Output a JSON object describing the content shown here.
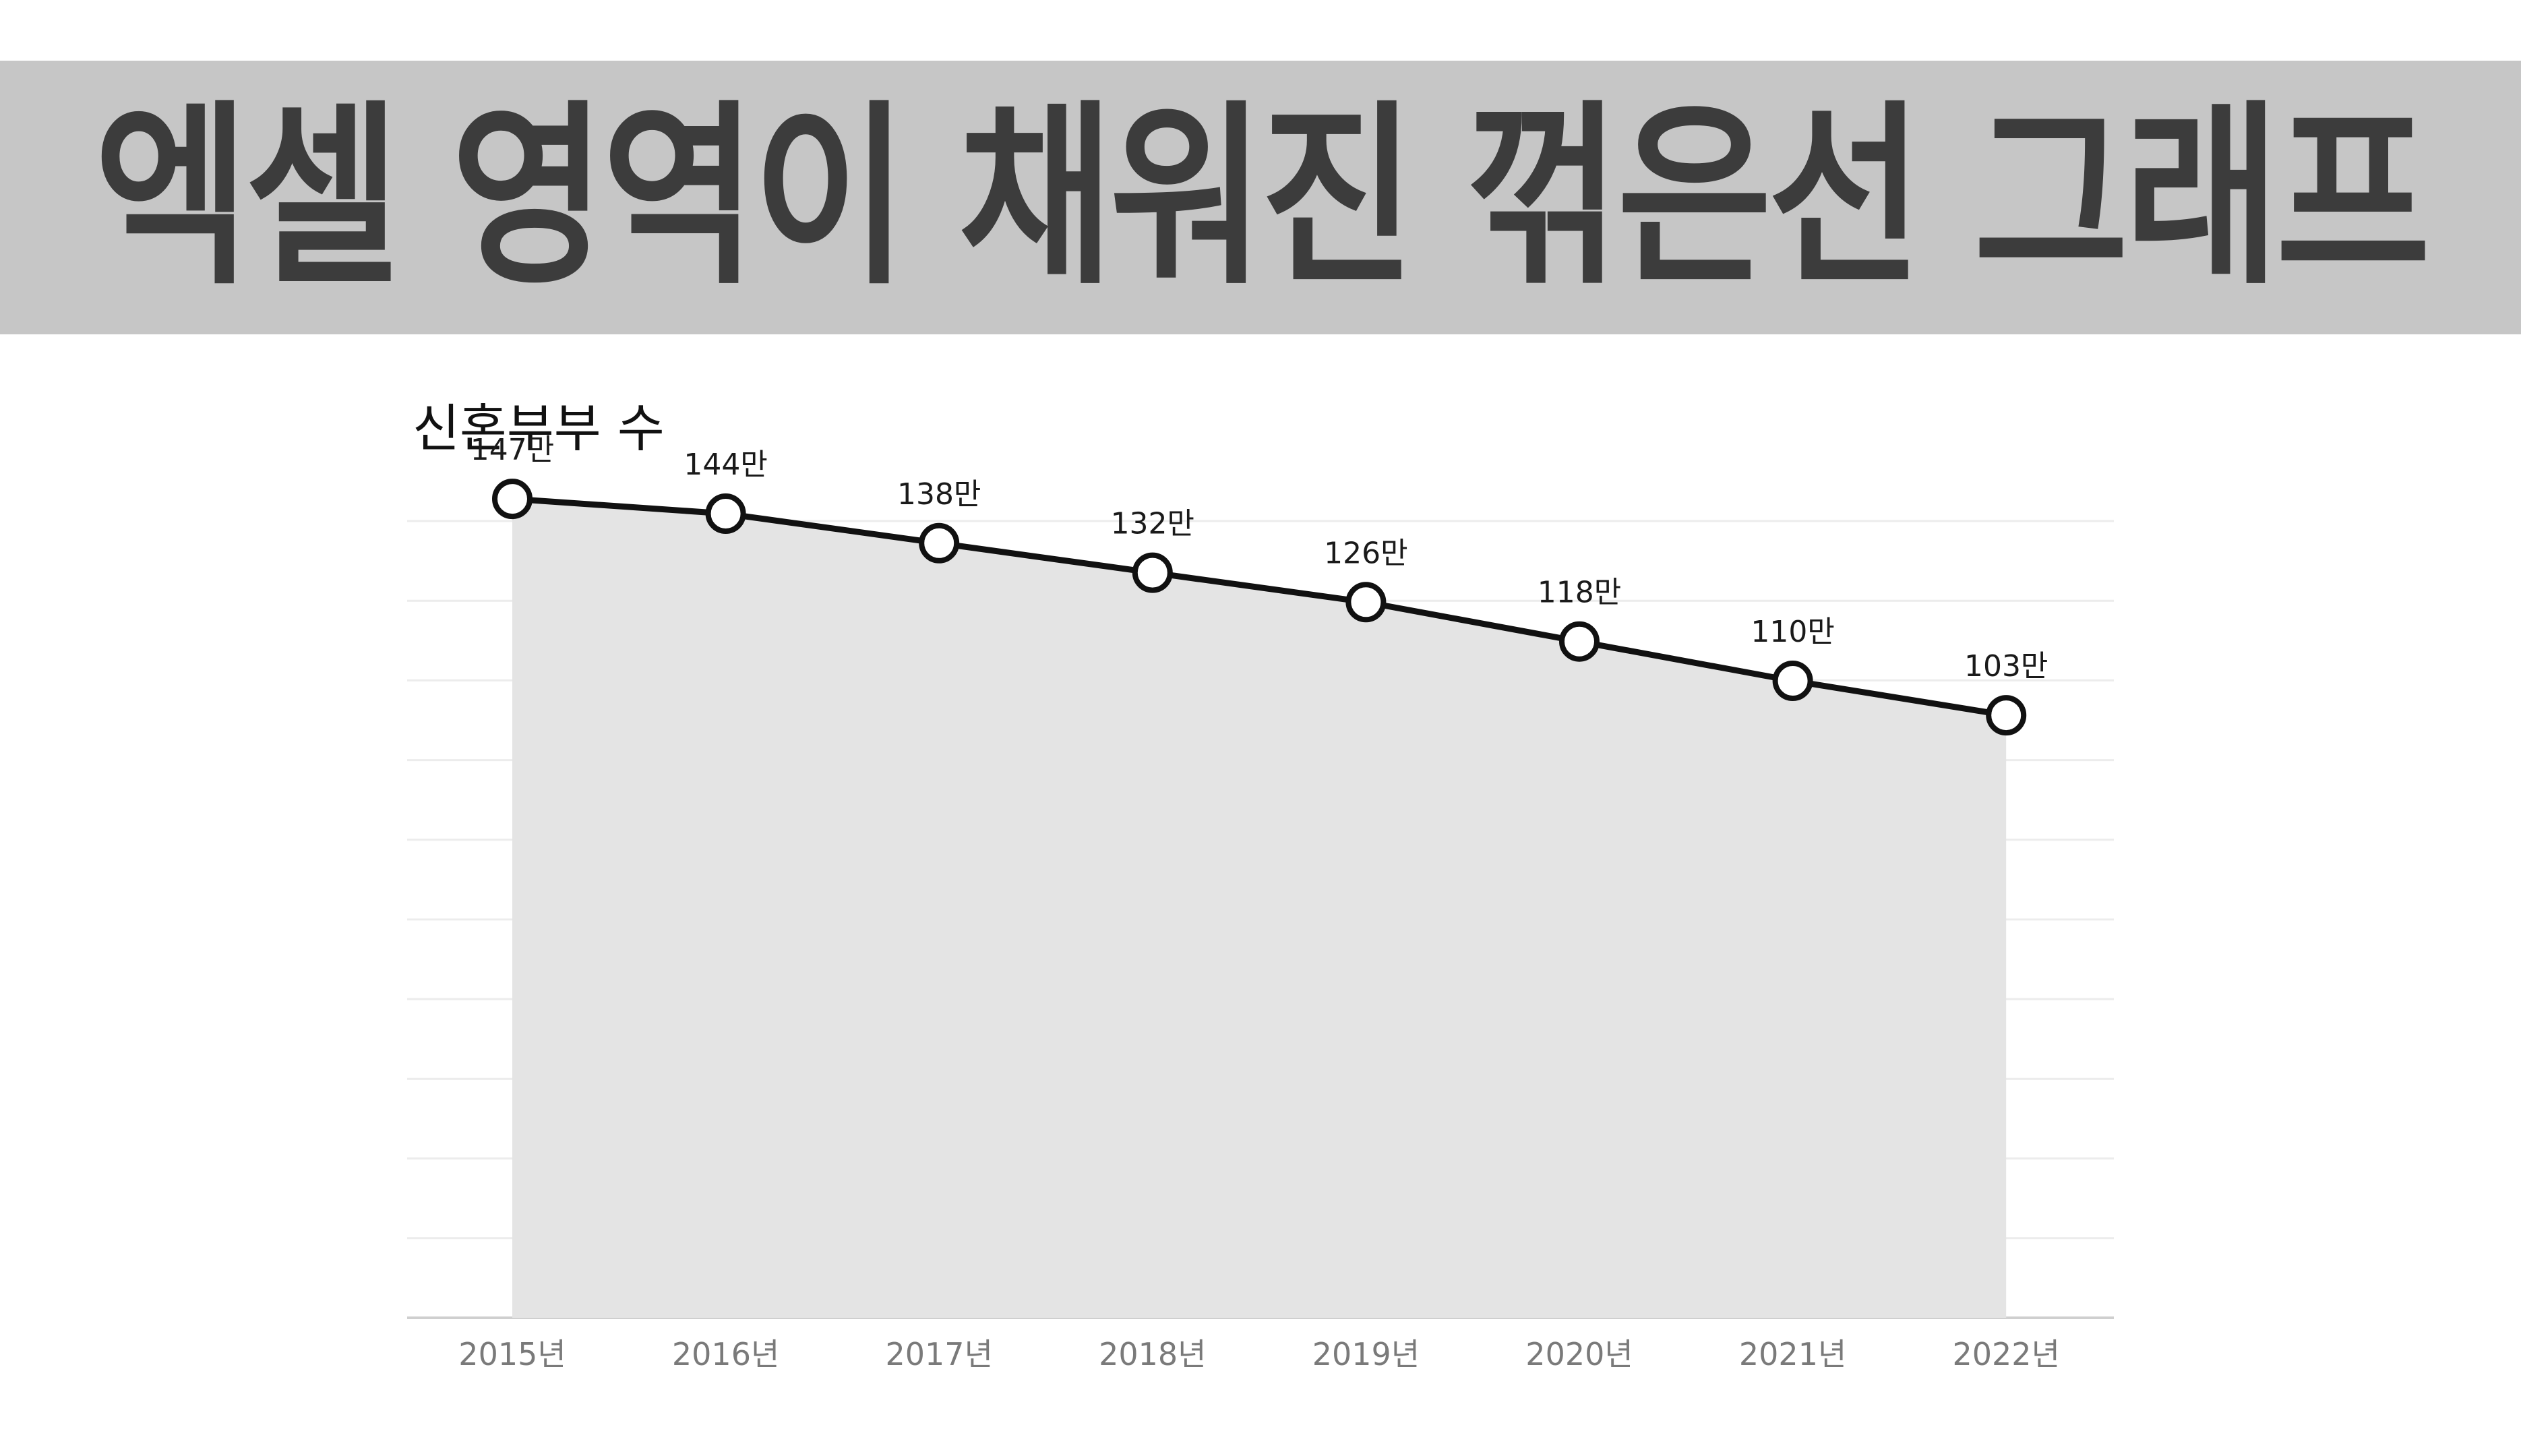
{
  "banner": {
    "title": "엑셀 영역이 채워진 꺾은선 그래프"
  },
  "chart_data": {
    "type": "area",
    "title": "신혼부부 수",
    "categories": [
      "2015년",
      "2016년",
      "2017년",
      "2018년",
      "2019년",
      "2020년",
      "2021년",
      "2022년"
    ],
    "series": [
      {
        "values": [
          147,
          144,
          138,
          132,
          126,
          118,
          110,
          103
        ],
        "data_labels": [
          "147만",
          "144만",
          "138만",
          "132만",
          "126만",
          "118만",
          "110만",
          "103만"
        ]
      }
    ],
    "unit": "만",
    "ylim": [
      0,
      160
    ],
    "grid": true,
    "legend": "none",
    "colors": {
      "area_fill": "#e4e4e4",
      "line": "#111111",
      "marker_fill": "#ffffff",
      "gridline": "#ececec",
      "axis": "#cfcfcf",
      "tick_label": "#7a7a7a",
      "data_label": "#1a1a1a"
    }
  }
}
